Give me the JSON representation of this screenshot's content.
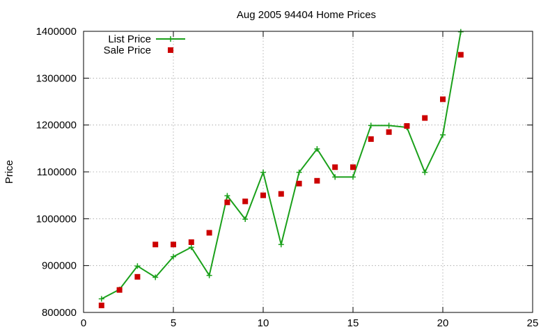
{
  "colors": {
    "list_price": "#1aa01a",
    "sale_price": "#cc0000",
    "grid": "#a0a0a0",
    "axis": "#000000"
  },
  "chart_data": {
    "type": "line",
    "title": "Aug 2005 94404 Home Prices",
    "xlabel": "",
    "ylabel": "Price",
    "xlim": [
      0,
      25
    ],
    "ylim": [
      800000,
      1400000
    ],
    "xticks": [
      0,
      5,
      10,
      15,
      20,
      25
    ],
    "yticks": [
      800000,
      900000,
      1000000,
      1100000,
      1200000,
      1300000,
      1400000
    ],
    "xtick_labels": [
      "0",
      "5",
      "10",
      "15",
      "20",
      "25"
    ],
    "ytick_labels": [
      "800000",
      "900000",
      "1000000",
      "1100000",
      "1200000",
      "1300000",
      "1400000"
    ],
    "grid": true,
    "legend": "top-left",
    "series": [
      {
        "name": "List Price",
        "style": "line-with-plus-markers",
        "color": "#1aa01a",
        "x": [
          1,
          2,
          3,
          4,
          5,
          6,
          7,
          8,
          9,
          10,
          11,
          12,
          13,
          14,
          15,
          16,
          17,
          18,
          19,
          20,
          21
        ],
        "y": [
          829000,
          849000,
          899000,
          875000,
          919000,
          939000,
          879000,
          1049000,
          999000,
          1099000,
          945000,
          1099000,
          1149000,
          1089000,
          1089000,
          1199000,
          1199000,
          1195000,
          1099000,
          1179000,
          1399000
        ]
      },
      {
        "name": "Sale Price",
        "style": "square-markers",
        "color": "#cc0000",
        "x": [
          1,
          2,
          3,
          4,
          5,
          6,
          7,
          8,
          9,
          10,
          11,
          12,
          13,
          14,
          15,
          16,
          17,
          18,
          19,
          20,
          21
        ],
        "y": [
          815000,
          848000,
          876000,
          945000,
          945000,
          950000,
          970000,
          1035000,
          1037000,
          1050000,
          1053000,
          1075000,
          1081000,
          1110000,
          1110000,
          1170000,
          1185000,
          1198000,
          1215000,
          1255000,
          1350000
        ]
      }
    ]
  }
}
